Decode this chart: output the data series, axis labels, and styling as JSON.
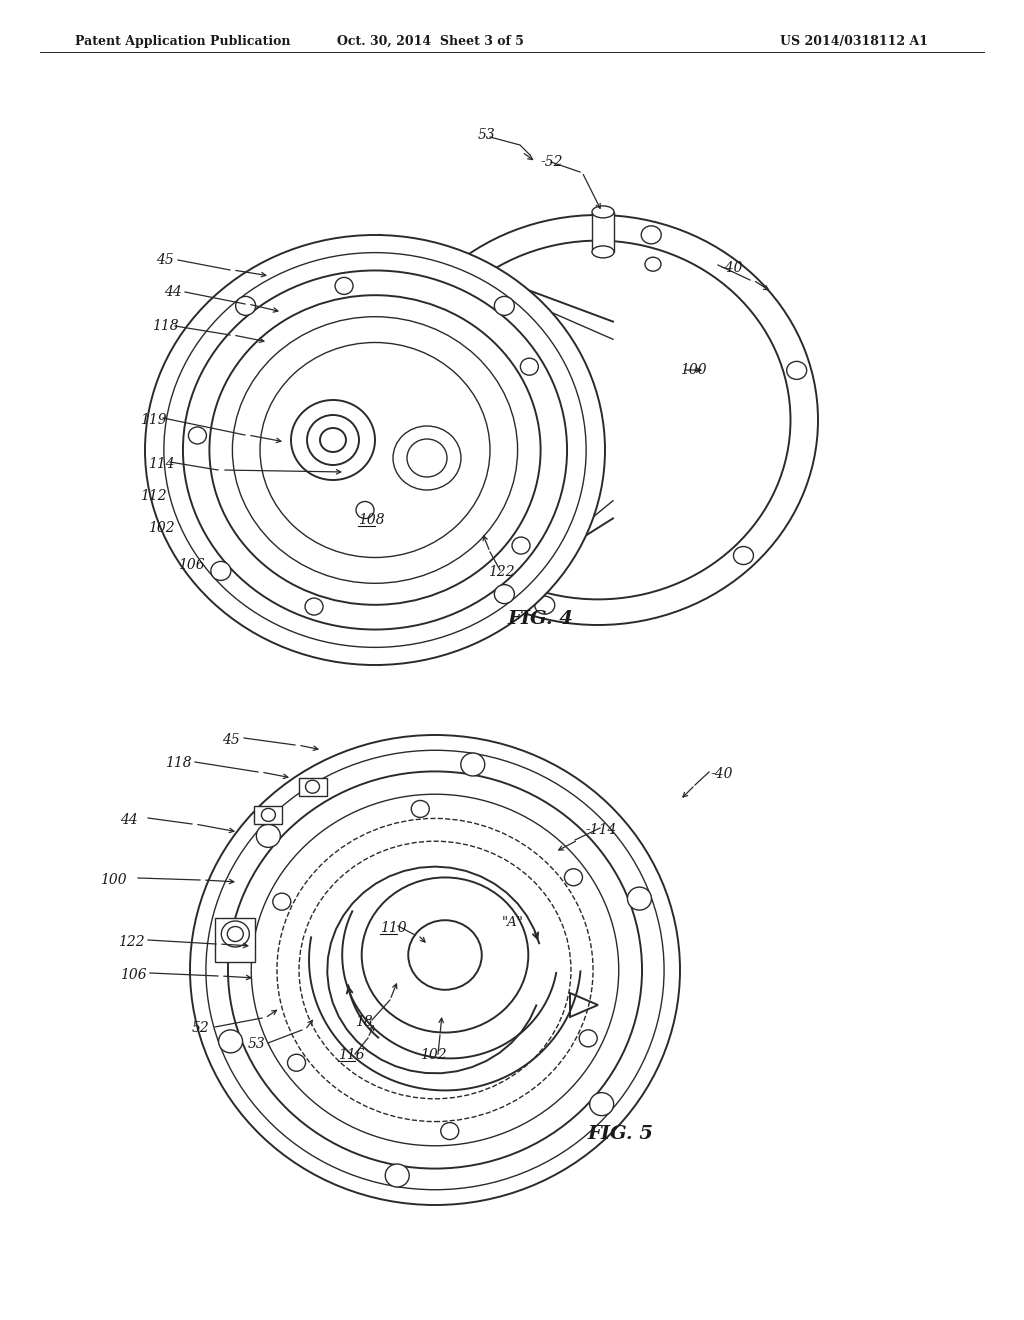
{
  "bg_color": "#ffffff",
  "line_color": "#2a2a2a",
  "header_left": "Patent Application Publication",
  "header_center": "Oct. 30, 2014  Sheet 3 of 5",
  "header_right": "US 2014/0318112 A1",
  "fig4_label": "FIG. 4",
  "fig5_label": "FIG. 5"
}
